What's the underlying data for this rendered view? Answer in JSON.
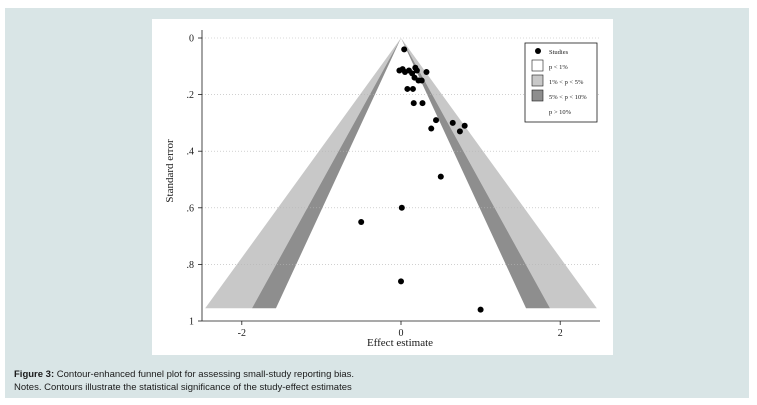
{
  "caption": {
    "figure_label": "Figure 3:",
    "figure_text": " Contour-enhanced funnel plot for assessing small-study reporting bias.",
    "notes": "Notes. Contours illustrate the statistical significance of the study-effect estimates"
  },
  "chart_data": {
    "type": "scatter",
    "xlabel": "Effect estimate",
    "ylabel": "Standard error",
    "xlim": [
      -2.5,
      2.5
    ],
    "ylim": [
      0,
      1
    ],
    "y_reversed": true,
    "x_ticks": [
      -2,
      0,
      2
    ],
    "x_tick_labels": [
      "-2",
      "0",
      "2"
    ],
    "y_ticks": [
      0,
      0.2,
      0.4,
      0.6,
      0.8,
      1
    ],
    "y_tick_labels": [
      "0",
      ".2",
      ".4",
      ".6",
      ".8",
      "1"
    ],
    "grid": true,
    "legend_position": "top-right",
    "legend": [
      {
        "label": "Studies",
        "kind": "marker"
      },
      {
        "label": "p < 1%",
        "kind": "swatch",
        "color": "#ffffff"
      },
      {
        "label": "1% < p < 5%",
        "kind": "swatch",
        "color": "#c8c8c8"
      },
      {
        "label": "5% < p < 10%",
        "kind": "swatch",
        "color": "#8e8e8e"
      },
      {
        "label": "p > 10%",
        "kind": "none"
      }
    ],
    "contours": {
      "z_1pct": 2.576,
      "z_5pct": 1.96,
      "z_10pct": 1.645,
      "colors": {
        "p_1_5": "#c8c8c8",
        "p_5_10": "#8e8e8e",
        "p_gt10": "#ffffff"
      }
    },
    "points": [
      {
        "x": 0.04,
        "y": 0.04
      },
      {
        "x": -0.02,
        "y": 0.115
      },
      {
        "x": 0.02,
        "y": 0.11
      },
      {
        "x": 0.05,
        "y": 0.12
      },
      {
        "x": 0.1,
        "y": 0.115
      },
      {
        "x": 0.14,
        "y": 0.125
      },
      {
        "x": 0.18,
        "y": 0.105
      },
      {
        "x": 0.2,
        "y": 0.115
      },
      {
        "x": 0.17,
        "y": 0.14
      },
      {
        "x": 0.22,
        "y": 0.15
      },
      {
        "x": 0.26,
        "y": 0.15
      },
      {
        "x": 0.32,
        "y": 0.12
      },
      {
        "x": 0.08,
        "y": 0.18
      },
      {
        "x": 0.15,
        "y": 0.18
      },
      {
        "x": 0.16,
        "y": 0.23
      },
      {
        "x": 0.27,
        "y": 0.23
      },
      {
        "x": 0.38,
        "y": 0.32
      },
      {
        "x": 0.44,
        "y": 0.29
      },
      {
        "x": 0.65,
        "y": 0.3
      },
      {
        "x": 0.74,
        "y": 0.33
      },
      {
        "x": 0.8,
        "y": 0.31
      },
      {
        "x": 0.5,
        "y": 0.49
      },
      {
        "x": 0.01,
        "y": 0.6
      },
      {
        "x": -0.5,
        "y": 0.65
      },
      {
        "x": 0.0,
        "y": 0.86
      },
      {
        "x": 1.0,
        "y": 0.96
      }
    ]
  }
}
